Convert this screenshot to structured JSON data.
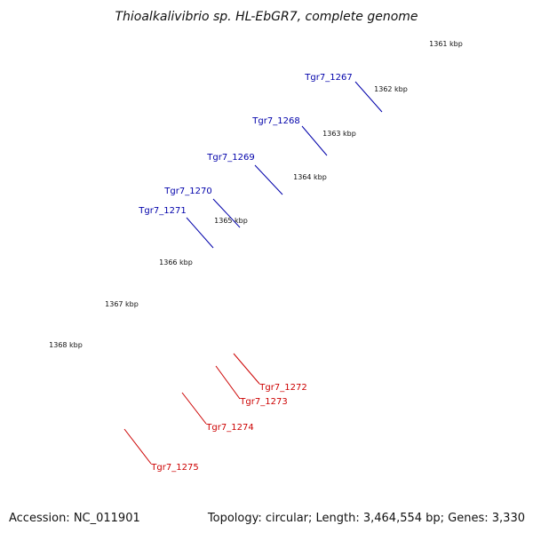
{
  "title": "Thioalkalivibrio sp. HL-EbGR7, complete genome",
  "footer": {
    "accession": "Accession: NC_011901",
    "info": "Topology: circular; Length: 3,464,554 bp; Genes: 3,330"
  },
  "colors": {
    "backbone": "#808080",
    "forward_top": "#00e5e5",
    "forward_main": "#0000dd",
    "reverse_main": "#ee0000",
    "reverse_rna": "#b8b07a",
    "gray_gene": "#c0c0c0",
    "orange_gene": "#ff8c00",
    "dots": "#118811",
    "label_blue": "#0000aa",
    "label_red": "#cc0000"
  },
  "ticks": [
    "1361 kbp",
    "1362 kbp",
    "1363 kbp",
    "1364 kbp",
    "1365 kbp",
    "1366 kbp",
    "1367 kbp",
    "1368 kbp"
  ],
  "gene_labels": [
    {
      "text": "Tgr7_1267",
      "strand": "forward"
    },
    {
      "text": "Tgr7_1268",
      "strand": "forward"
    },
    {
      "text": "Tgr7_1269",
      "strand": "forward"
    },
    {
      "text": "Tgr7_1270",
      "strand": "forward"
    },
    {
      "text": "Tgr7_1271",
      "strand": "forward"
    },
    {
      "text": "Tgr7_1272",
      "strand": "reverse"
    },
    {
      "text": "Tgr7_1273",
      "strand": "reverse"
    },
    {
      "text": "Tgr7_1274",
      "strand": "reverse"
    },
    {
      "text": "Tgr7_1275",
      "strand": "reverse"
    }
  ]
}
